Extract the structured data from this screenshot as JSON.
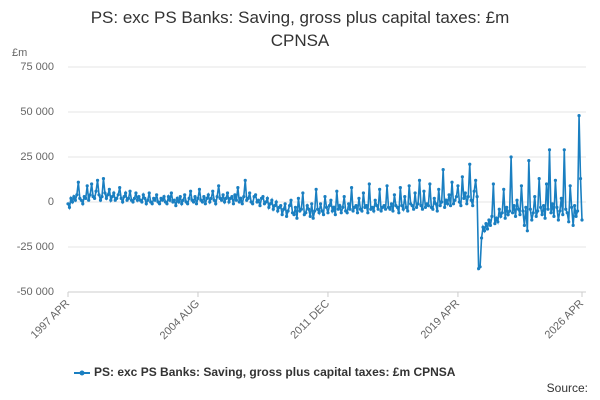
{
  "chart_data": {
    "type": "line",
    "title": "PS: exc PS Banks: Saving, gross plus capital taxes: £m CPNSA",
    "y_unit": "£m",
    "source": "Source:",
    "categories": [
      "1997 APR",
      null,
      null,
      null,
      null,
      null,
      null,
      null,
      null,
      null,
      null,
      null,
      null,
      null,
      null,
      null,
      null,
      null,
      null,
      null,
      null,
      null,
      null,
      null,
      null,
      null,
      null,
      null,
      null,
      null,
      null,
      null,
      null,
      null,
      null,
      null,
      null,
      null,
      null,
      null,
      null,
      null,
      null,
      null,
      null,
      null,
      null,
      null,
      null,
      null,
      null,
      null,
      null,
      null,
      null,
      null,
      null,
      null,
      null,
      null,
      null,
      null,
      null,
      null,
      null,
      null,
      null,
      null,
      null,
      null,
      null,
      null,
      null,
      null,
      null,
      null,
      null,
      null,
      null,
      null,
      null,
      null,
      null,
      null,
      null,
      null,
      null,
      null,
      "2004 AUG",
      null,
      null,
      null,
      null,
      null,
      null,
      null,
      null,
      null,
      null,
      null,
      null,
      null,
      null,
      null,
      null,
      null,
      null,
      null,
      null,
      null,
      null,
      null,
      null,
      null,
      null,
      null,
      null,
      null,
      null,
      null,
      null,
      null,
      null,
      null,
      null,
      null,
      null,
      null,
      null,
      null,
      null,
      null,
      null,
      null,
      null,
      null,
      null,
      null,
      null,
      null,
      null,
      null,
      null,
      null,
      null,
      null,
      null,
      null,
      null,
      null,
      null,
      null,
      null,
      null,
      null,
      null,
      null,
      null,
      null,
      null,
      null,
      null,
      null,
      null,
      null,
      null,
      null,
      null,
      null,
      null,
      null,
      null,
      null,
      null,
      null,
      null,
      "2011 DEC",
      null,
      null,
      null,
      null,
      null,
      null,
      null,
      null,
      null,
      null,
      null,
      null,
      null,
      null,
      null,
      null,
      null,
      null,
      null,
      null,
      null,
      null,
      null,
      null,
      null,
      null,
      null,
      null,
      null,
      null,
      null,
      null,
      null,
      null,
      null,
      null,
      null,
      null,
      null,
      null,
      null,
      null,
      null,
      null,
      null,
      null,
      null,
      null,
      null,
      null,
      null,
      null,
      null,
      null,
      null,
      null,
      null,
      null,
      null,
      null,
      null,
      null,
      null,
      null,
      null,
      null,
      null,
      null,
      null,
      null,
      null,
      null,
      null,
      null,
      null,
      null,
      null,
      null,
      null,
      null,
      null,
      null,
      null,
      null,
      null,
      null,
      null,
      "2019 APR",
      null,
      null,
      null,
      null,
      null,
      null,
      null,
      null,
      null,
      null,
      null,
      null,
      null,
      null,
      null,
      null,
      null,
      null,
      null,
      null,
      null,
      null,
      null,
      null,
      null,
      null,
      null,
      null,
      null,
      null,
      null,
      null,
      null,
      null,
      null,
      null,
      null,
      null,
      null,
      null,
      null,
      null,
      null,
      null,
      null,
      null,
      null,
      null,
      null,
      null,
      null,
      null,
      null,
      null,
      null,
      null,
      null,
      null,
      null,
      null,
      null,
      null,
      null,
      null,
      null,
      null,
      null,
      null,
      null,
      null,
      null,
      null,
      null,
      null,
      null,
      null,
      null,
      null,
      null,
      null,
      null,
      null,
      null,
      "2026 APR"
    ],
    "series": [
      {
        "name": "PS: exc PS Banks: Saving, gross plus capital taxes: £m CPNSA",
        "color": "#1a7fc1",
        "values": [
          -1000,
          -3000,
          2000,
          0,
          3000,
          1000,
          4000,
          11000,
          2000,
          1000,
          -1000,
          3000,
          2000,
          9000,
          1000,
          4000,
          10000,
          3000,
          2000,
          6000,
          12000,
          4000,
          1000,
          3000,
          13000,
          5000,
          2000,
          4000,
          7000,
          1000,
          3000,
          5000,
          1000,
          2000,
          4000,
          8000,
          2000,
          0,
          3000,
          5000,
          1000,
          2000,
          6000,
          1000,
          0,
          2000,
          5000,
          1000,
          3000,
          1000,
          0,
          4000,
          2000,
          -1000,
          1000,
          5000,
          0,
          -1000,
          2000,
          1000,
          4000,
          0,
          -1000,
          2000,
          1000,
          3000,
          0,
          -1000,
          3000,
          1000,
          5000,
          0,
          1000,
          -2000,
          2000,
          0,
          3000,
          -1000,
          1000,
          4000,
          0,
          -1000,
          2000,
          6000,
          1000,
          0,
          3000,
          -1000,
          2000,
          7000,
          1000,
          0,
          3000,
          -1000,
          2000,
          4000,
          0,
          2000,
          6000,
          1000,
          -1000,
          3000,
          9000,
          2000,
          1000,
          4000,
          0,
          2000,
          5000,
          0,
          2000,
          3000,
          -1000,
          4000,
          1000,
          8000,
          0,
          2000,
          -1000,
          3000,
          12000,
          1000,
          2000,
          5000,
          0,
          -1000,
          3000,
          4000,
          0,
          1000,
          -2000,
          2000,
          3000,
          -1000,
          0,
          2000,
          -3000,
          -1000,
          1000,
          -4000,
          -2000,
          0,
          -5000,
          -3000,
          -2000,
          -7000,
          -4000,
          -1000,
          -8000,
          -5000,
          -2000,
          1000,
          -6000,
          -7000,
          -3000,
          -9000,
          2000,
          -5000,
          -4000,
          5000,
          -7000,
          -6000,
          -2000,
          -4000,
          -8000,
          -1000,
          -9000,
          -5000,
          7000,
          -4000,
          -6000,
          -1000,
          -5000,
          -7000,
          3000,
          -3000,
          -6000,
          -2000,
          1000,
          -5000,
          -3000,
          -7000,
          6000,
          -4000,
          -2000,
          -6000,
          -3000,
          3000,
          -5000,
          -6000,
          -1000,
          -4000,
          8000,
          -5000,
          -3000,
          -2000,
          -6000,
          2000,
          -4000,
          -5000,
          5000,
          -3000,
          -2000,
          -6000,
          10000,
          -4000,
          -3000,
          -5000,
          1000,
          -2000,
          -4000,
          7000,
          -5000,
          -3000,
          -2000,
          -4000,
          9000,
          -3000,
          -4000,
          -1000,
          -5000,
          4000,
          -2000,
          -3000,
          -6000,
          8000,
          -2000,
          -4000,
          3000,
          -3000,
          -5000,
          9000,
          -1000,
          -2000,
          -4000,
          5000,
          -3000,
          -1000,
          12000,
          -2000,
          -4000,
          6000,
          -3000,
          -1000,
          -2000,
          10000,
          -3000,
          -4000,
          2000,
          -1000,
          -5000,
          7000,
          -2000,
          0,
          18000,
          -3000,
          1000,
          -1000,
          4000,
          -2000,
          11000,
          -1000,
          1000,
          3000,
          9000,
          0,
          -2000,
          14000,
          2000,
          5000,
          -1000,
          3000,
          21000,
          1000,
          -2000,
          6000,
          12000,
          3000,
          -37000,
          -36000,
          -20000,
          -14000,
          -16000,
          -12000,
          -15000,
          -10000,
          -13000,
          -8000,
          10000,
          -12000,
          -9000,
          -11000,
          -4000,
          -8000,
          -6000,
          7000,
          -9000,
          -3000,
          -7000,
          -5000,
          25000,
          -6000,
          -2000,
          -8000,
          1000,
          -4000,
          -7000,
          9000,
          -5000,
          -13000,
          -3000,
          -16000,
          23000,
          -4000,
          -10000,
          -6000,
          3000,
          -8000,
          -5000,
          13000,
          -3000,
          -7000,
          -2000,
          -9000,
          10000,
          -4000,
          29000,
          -6000,
          -1000,
          -8000,
          12000,
          -3000,
          -10000,
          -5000,
          2000,
          -7000,
          29000,
          -4000,
          -6000,
          -11000,
          9000,
          -3000,
          -13000,
          -2000,
          -8000,
          -5000,
          48000,
          13000,
          -10000
        ]
      }
    ],
    "ylim": [
      -50000,
      75000
    ],
    "yticks": [
      {
        "value": -50000,
        "label": "-50 000"
      },
      {
        "value": -25000,
        "label": "-25 000"
      },
      0,
      {
        "value": 25000,
        "label": "25 000"
      },
      {
        "value": 50000,
        "label": "50 000"
      },
      {
        "value": 75000,
        "label": "75 000"
      }
    ],
    "grid": true
  }
}
